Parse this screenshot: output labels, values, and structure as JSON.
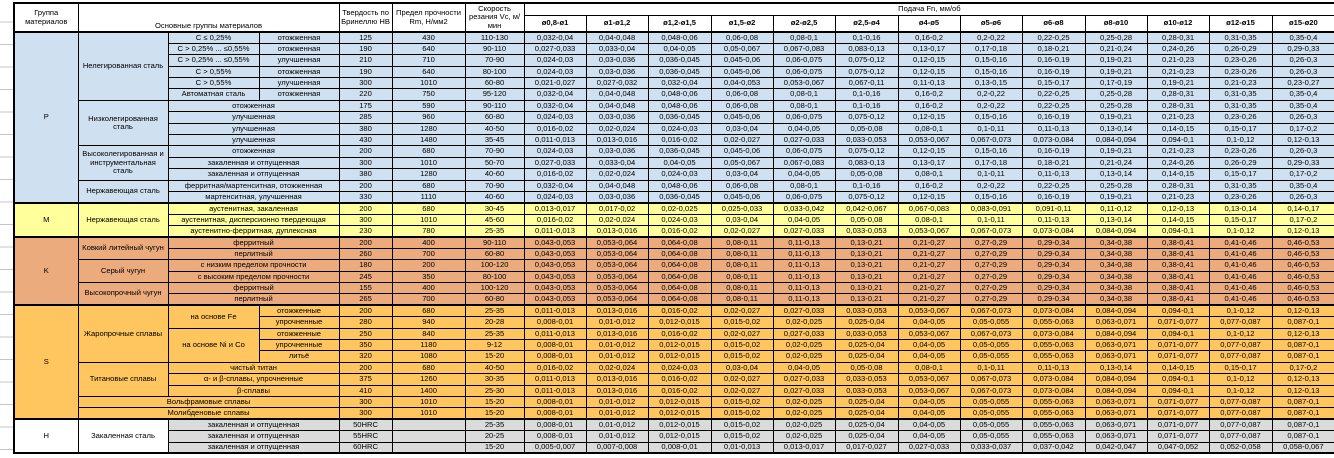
{
  "header": {
    "group": "Группа материалов",
    "main_groups": "Основные группы материалов",
    "hardness": "Твердость по Бринеллю HB",
    "strength": "Предел прочности Rm, Н/мм2",
    "speed": "Скорость резания Vc, м/мин",
    "feed_title": "Подача Fn, мм/об",
    "feed_cols": [
      "ø0,8-ø1",
      "ø1-ø1,2",
      "ø1,2-ø1,5",
      "ø1,5-ø2",
      "ø2-ø2,5",
      "ø2,5-ø4",
      "ø4-ø5",
      "ø5-ø6",
      "ø6-ø8",
      "ø8-ø10",
      "ø10-ø12",
      "ø12-ø15",
      "ø15-ø20"
    ]
  },
  "colors": {
    "section_P": "#cfe0f1",
    "section_M": "#ffff9c",
    "section_K": "#ebab7d",
    "section_S": "#ffc55f",
    "section_H": "#dbdbdb",
    "border": "#000000"
  },
  "feed_sets": {
    "A": [
      "0,032-0,04",
      "0,04-0,048",
      "0,048-0,06",
      "0,06-0,08",
      "0,08-0,1",
      "0,1-0,16",
      "0,16-0,2",
      "0,2-0,22",
      "0,22-0,25",
      "0,25-0,28",
      "0,28-0,31",
      "0,31-0,35",
      "0,35-0,4"
    ],
    "B": [
      "0,027-0,033",
      "0,033-0,04",
      "0,04-0,05",
      "0,05-0,067",
      "0,067-0,083",
      "0,083-0,13",
      "0,13-0,17",
      "0,17-0,18",
      "0,18-0,21",
      "0,21-0,24",
      "0,24-0,26",
      "0,26-0,29",
      "0,29-0,33"
    ],
    "C": [
      "0,024-0,03",
      "0,03-0,036",
      "0,036-0,045",
      "0,045-0,06",
      "0,06-0,075",
      "0,075-0,12",
      "0,12-0,15",
      "0,15-0,16",
      "0,16-0,19",
      "0,19-0,21",
      "0,21-0,23",
      "0,23-0,26",
      "0,26-0,3"
    ],
    "D": [
      "0,021-0,027",
      "0,027-0,032",
      "0,032-0,04",
      "0,04-0,053",
      "0,053-0,067",
      "0,067-0,11",
      "0,11-0,13",
      "0,13-0,15",
      "0,15-0,17",
      "0,17-0,19",
      "0,19-0,21",
      "0,21-0,23",
      "0,23-0,27"
    ],
    "E": [
      "0,016-0,02",
      "0,02-0,024",
      "0,024-0,03",
      "0,03-0,04",
      "0,04-0,05",
      "0,05-0,08",
      "0,08-0,1",
      "0,1-0,11",
      "0,11-0,13",
      "0,13-0,14",
      "0,14-0,15",
      "0,15-0,17",
      "0,17-0,2"
    ],
    "F": [
      "0,011-0,013",
      "0,013-0,016",
      "0,016-0,02",
      "0,02-0,027",
      "0,027-0,033",
      "0,033-0,053",
      "0,053-0,067",
      "0,067-0,073",
      "0,073-0,084",
      "0,084-0,094",
      "0,094-0,1",
      "0,1-0,12",
      "0,12-0,13"
    ],
    "G": [
      "0,013-0,017",
      "0,017-0,02",
      "0,02-0,025",
      "0,025-0,033",
      "0,033-0,042",
      "0,042-0,067",
      "0,067-0,083",
      "0,083-0,091",
      "0,091-0,11",
      "0,11-0,12",
      "0,12-0,13",
      "0,13-0,14",
      "0,14-0,17"
    ],
    "H": [
      "0,043-0,053",
      "0,053-0,064",
      "0,064-0,08",
      "0,08-0,11",
      "0,11-0,13",
      "0,13-0,21",
      "0,21-0,27",
      "0,27-0,29",
      "0,29-0,34",
      "0,34-0,38",
      "0,38-0,41",
      "0,41-0,46",
      "0,46-0,53"
    ],
    "I": [
      "0,008-0,01",
      "0,01-0,012",
      "0,012-0,015",
      "0,015-0,02",
      "0,02-0,025",
      "0,025-0,04",
      "0,04-0,05",
      "0,05-0,055",
      "0,055-0,063",
      "0,063-0,071",
      "0,071-0,077",
      "0,077-0,087",
      "0,087-0,1"
    ],
    "J": [
      "0,005-0,007",
      "0,007-0,008",
      "0,008-0,01",
      "0,01-0,013",
      "0,013-0,017",
      "0,017-0,027",
      "0,027-0,033",
      "0,033-0,037",
      "0,037-0,042",
      "0,042-0,047",
      "0,047-0,052",
      "0,052-0,058",
      "0,058-0,067"
    ]
  },
  "sections": [
    {
      "id": "P",
      "css": "sec-p",
      "rows": [
        {
          "left": [
            {
              "t": "P",
              "rs": 15
            },
            {
              "t": "Нелегированная сталь",
              "rs": 6
            },
            {
              "t": "C ≤ 0,25%"
            },
            {
              "t": "отожженная"
            }
          ],
          "hb": "125",
          "rm": "430",
          "vc": "110-130",
          "fs": "A"
        },
        {
          "left": [
            {
              "t": "C > 0,25% ... ≤0,55%"
            },
            {
              "t": "отожженная"
            }
          ],
          "hb": "190",
          "rm": "640",
          "vc": "90-110",
          "fs": "B"
        },
        {
          "left": [
            {
              "t": "C > 0,25% ... ≤0,55%"
            },
            {
              "t": "улучшенная"
            }
          ],
          "hb": "210",
          "rm": "710",
          "vc": "70-90",
          "fs": "C"
        },
        {
          "left": [
            {
              "t": "C > 0,55%"
            },
            {
              "t": "отожженная"
            }
          ],
          "hb": "190",
          "rm": "640",
          "vc": "80-100",
          "fs": "C"
        },
        {
          "left": [
            {
              "t": "C > 0,55%"
            },
            {
              "t": "улучшенная"
            }
          ],
          "hb": "300",
          "rm": "1010",
          "vc": "60-80",
          "fs": "D"
        },
        {
          "left": [
            {
              "t": "Автоматная сталь"
            },
            {
              "t": "отожженная"
            }
          ],
          "hb": "220",
          "rm": "750",
          "vc": "95-120",
          "fs": "A"
        },
        {
          "grp": true,
          "left": [
            {
              "t": "Низколегированная сталь",
              "rs": 4
            },
            {
              "t": "отожженная",
              "cs": 2
            }
          ],
          "hb": "175",
          "rm": "590",
          "vc": "90-110",
          "fs": "A"
        },
        {
          "left": [
            {
              "t": "улучшенная",
              "cs": 2
            }
          ],
          "hb": "285",
          "rm": "960",
          "vc": "60-80",
          "fs": "C"
        },
        {
          "left": [
            {
              "t": "улучшенная",
              "cs": 2
            }
          ],
          "hb": "380",
          "rm": "1280",
          "vc": "40-50",
          "fs": "E"
        },
        {
          "left": [
            {
              "t": "улучшенная",
              "cs": 2
            }
          ],
          "hb": "430",
          "rm": "1480",
          "vc": "35-45",
          "fs": "F"
        },
        {
          "grp": true,
          "left": [
            {
              "t": "Высоколегированная и инструментальная сталь",
              "rs": 3
            },
            {
              "t": "отожженная",
              "cs": 2
            }
          ],
          "hb": "200",
          "rm": "680",
          "vc": "70-90",
          "fs": "C"
        },
        {
          "left": [
            {
              "t": "закаленная и отпущенная",
              "cs": 2
            }
          ],
          "hb": "300",
          "rm": "1010",
          "vc": "50-70",
          "fs": "B"
        },
        {
          "left": [
            {
              "t": "закаленная и отпущенная",
              "cs": 2
            }
          ],
          "hb": "380",
          "rm": "1280",
          "vc": "40-60",
          "fs": "E"
        },
        {
          "grp": true,
          "left": [
            {
              "t": "Нержавеющая сталь",
              "rs": 2
            },
            {
              "t": "ферритная/мартенситная, отожженная",
              "cs": 2
            }
          ],
          "hb": "200",
          "rm": "680",
          "vc": "70-90",
          "fs": "A"
        },
        {
          "left": [
            {
              "t": "мартенситная, улучшенная",
              "cs": 2
            }
          ],
          "hb": "330",
          "rm": "1110",
          "vc": "40-60",
          "fs": "C"
        }
      ]
    },
    {
      "id": "M",
      "css": "sec-m",
      "rows": [
        {
          "left": [
            {
              "t": "M",
              "rs": 3
            },
            {
              "t": "Нержавеющая сталь",
              "rs": 3
            },
            {
              "t": "аустенитная, закаленная",
              "cs": 2
            }
          ],
          "hb": "200",
          "rm": "680",
          "vc": "30-45",
          "fs": "G"
        },
        {
          "left": [
            {
              "t": "аустенитная, дисперсионно твердеющая",
              "cs": 2
            }
          ],
          "hb": "300",
          "rm": "1010",
          "vc": "45-60",
          "fs": "E"
        },
        {
          "left": [
            {
              "t": "аустенитно-ферритная, дуплексная",
              "cs": 2
            }
          ],
          "hb": "230",
          "rm": "780",
          "vc": "25-35",
          "fs": "F"
        }
      ]
    },
    {
      "id": "K",
      "css": "sec-k",
      "rows": [
        {
          "left": [
            {
              "t": "K",
              "rs": 6
            },
            {
              "t": "Ковкий литейный чугун",
              "rs": 2
            },
            {
              "t": "ферритный",
              "cs": 2
            }
          ],
          "hb": "200",
          "rm": "400",
          "vc": "90-110",
          "fs": "H"
        },
        {
          "left": [
            {
              "t": "перлитный",
              "cs": 2
            }
          ],
          "hb": "260",
          "rm": "700",
          "vc": "60-80",
          "fs": "H"
        },
        {
          "grp": true,
          "left": [
            {
              "t": "Серый чугун",
              "rs": 2
            },
            {
              "t": "с низким пределом прочности",
              "cs": 2
            }
          ],
          "hb": "180",
          "rm": "200",
          "vc": "100-120",
          "fs": "H"
        },
        {
          "left": [
            {
              "t": "с высоким пределом прочности",
              "cs": 2
            }
          ],
          "hb": "245",
          "rm": "350",
          "vc": "80-100",
          "fs": "H"
        },
        {
          "grp": true,
          "left": [
            {
              "t": "Высокопрочный чугун",
              "rs": 2
            },
            {
              "t": "ферритный",
              "cs": 2
            }
          ],
          "hb": "155",
          "rm": "400",
          "vc": "100-120",
          "fs": "H"
        },
        {
          "left": [
            {
              "t": "перлитный",
              "cs": 2
            }
          ],
          "hb": "265",
          "rm": "700",
          "vc": "60-80",
          "fs": "H"
        }
      ]
    },
    {
      "id": "S",
      "css": "sec-s",
      "rows": [
        {
          "left": [
            {
              "t": "S",
              "rs": 10
            },
            {
              "t": "Жаропрочные сплавы",
              "rs": 5
            },
            {
              "t": "на основе Fe",
              "rs": 2
            },
            {
              "t": "отожженные"
            }
          ],
          "hb": "200",
          "rm": "680",
          "vc": "25-35",
          "fs": "F"
        },
        {
          "left": [
            {
              "t": "упрочненные"
            }
          ],
          "hb": "280",
          "rm": "940",
          "vc": "20-28",
          "fs": "I"
        },
        {
          "left": [
            {
              "t": "на основе Ni и Co",
              "rs": 3
            },
            {
              "t": "отожженные"
            }
          ],
          "hb": "250",
          "rm": "840",
          "vc": "25-35",
          "fs": "F"
        },
        {
          "left": [
            {
              "t": "упрочненные"
            }
          ],
          "hb": "350",
          "rm": "1180",
          "vc": "9-12",
          "fs": "I"
        },
        {
          "left": [
            {
              "t": "литьё"
            }
          ],
          "hb": "320",
          "rm": "1080",
          "vc": "15-20",
          "fs": "I"
        },
        {
          "grp": true,
          "left": [
            {
              "t": "Титановые сплавы",
              "rs": 3
            },
            {
              "t": "чистый титан",
              "cs": 2
            }
          ],
          "hb": "200",
          "rm": "680",
          "vc": "40-50",
          "fs": "E"
        },
        {
          "left": [
            {
              "t": "α- и β-сплавы, упрочненные",
              "cs": 2
            }
          ],
          "hb": "375",
          "rm": "1260",
          "vc": "30-35",
          "fs": "F"
        },
        {
          "left": [
            {
              "t": "β-сплавы",
              "cs": 2
            }
          ],
          "hb": "410",
          "rm": "1400",
          "vc": "25-30",
          "fs": "F"
        },
        {
          "grp": true,
          "left": [
            {
              "t": "Вольфрамовые сплавы",
              "cs": 3
            }
          ],
          "hb": "300",
          "rm": "1010",
          "vc": "15-20",
          "fs": "I"
        },
        {
          "grp": true,
          "left": [
            {
              "t": "Молибденовые сплавы",
              "cs": 3
            }
          ],
          "hb": "300",
          "rm": "1010",
          "vc": "15-20",
          "fs": "I"
        }
      ]
    },
    {
      "id": "H",
      "css": "sec-h",
      "rows": [
        {
          "left": [
            {
              "t": "H",
              "rs": 3,
              "cls": "wht"
            },
            {
              "t": "Закаленная сталь",
              "rs": 3,
              "cls": "wht"
            },
            {
              "t": "закаленная и отпущенная",
              "cs": 2
            }
          ],
          "hb": "50HRC",
          "rm": "",
          "vc": "25-35",
          "fs": "I"
        },
        {
          "left": [
            {
              "t": "закаленная и отпущенная",
              "cs": 2
            }
          ],
          "hb": "55HRC",
          "rm": "",
          "vc": "20-25",
          "fs": "I"
        },
        {
          "left": [
            {
              "t": "закаленная и отпущенная",
              "cs": 2
            }
          ],
          "hb": "60HRC",
          "rm": "",
          "vc": "15-20",
          "fs": "J"
        }
      ]
    }
  ]
}
